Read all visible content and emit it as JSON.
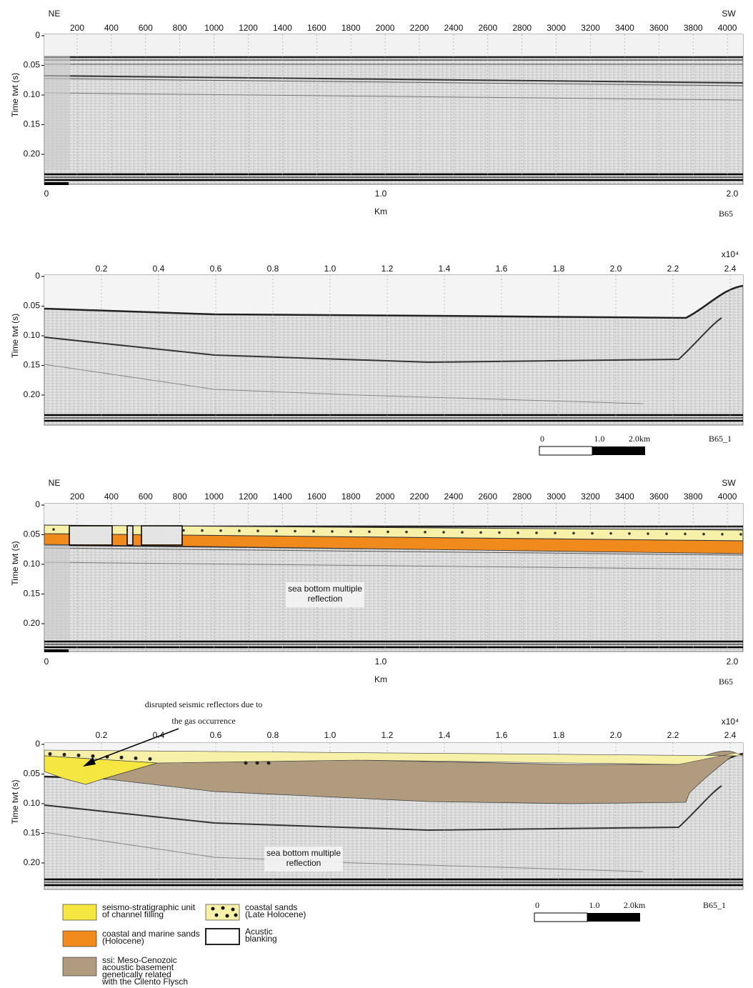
{
  "panels": [
    {
      "left_label": "NE",
      "right_label": "SW",
      "top_ticks": [
        "200",
        "400",
        "600",
        "800",
        "1000",
        "1200",
        "1400",
        "1600",
        "1800",
        "2000",
        "2200",
        "2400",
        "2600",
        "2800",
        "3000",
        "3200",
        "3400",
        "3600",
        "3800",
        "4000"
      ],
      "y_label": "Time twt (s)",
      "y_ticks": [
        "0",
        "0.05",
        "0.10",
        "0.15",
        "0.20"
      ],
      "bottom_ticks": [
        "0",
        "1.0",
        "2.0"
      ],
      "bottom_label": "Km",
      "profile": "B65"
    },
    {
      "multiplier": "x10⁴",
      "top_ticks": [
        "0.2",
        "0.4",
        "0.6",
        "0.8",
        "1.0",
        "1.2",
        "1.4",
        "1.6",
        "1.8",
        "2.0",
        "2.2",
        "2.4"
      ],
      "y_label": "Time twt (s)",
      "y_ticks": [
        "0",
        "0.05",
        "0.10",
        "0.15",
        "0.20"
      ],
      "scale_ticks": [
        "0",
        "1.0",
        "2.0km"
      ],
      "profile": "B65_1"
    },
    {
      "left_label": "NE",
      "right_label": "SW",
      "top_ticks": [
        "200",
        "400",
        "600",
        "800",
        "1000",
        "1200",
        "1400",
        "1600",
        "1800",
        "2000",
        "2200",
        "2400",
        "2600",
        "2800",
        "3000",
        "3200",
        "3400",
        "3600",
        "3800",
        "4000"
      ],
      "y_label": "Time twt (s)",
      "y_ticks": [
        "0",
        "0.05",
        "0.10",
        "0.15",
        "0.20"
      ],
      "annotation": [
        "sea bottom multiple",
        "reflection"
      ],
      "bottom_ticks": [
        "0",
        "1.0",
        "2.0"
      ],
      "bottom_label": "Km",
      "profile": "B65"
    },
    {
      "callout": [
        "disrupted seismic reflectors due to",
        "the gas occurrence"
      ],
      "multiplier": "x10⁴",
      "top_ticks": [
        "0.2",
        "0.4",
        "0.6",
        "0.8",
        "1.0",
        "1.2",
        "1.4",
        "1.6",
        "1.8",
        "2.0",
        "2.2",
        "2.4"
      ],
      "y_label": "Time twt (s)",
      "y_ticks": [
        "0",
        "0.05",
        "0.10",
        "0.15",
        "0.20"
      ],
      "annotation": [
        "sea bottom multiple",
        "reflection"
      ],
      "scale_ticks": [
        "0",
        "1.0",
        "2.0km"
      ],
      "profile": "B65_1"
    }
  ],
  "legend": [
    {
      "label": [
        "seismo-stratigraphic unit",
        "of channel filling"
      ]
    },
    {
      "label": [
        "coastal and marine sands",
        "(Holocene)"
      ]
    },
    {
      "label": [
        "ssi: Meso-Cenozoic",
        "acoustic basement",
        "genetically related",
        "with the Cilento Flysch"
      ]
    },
    {
      "label": [
        "coastal sands",
        "(Late Holocene)"
      ]
    },
    {
      "label": [
        "Acustic",
        "blanking"
      ]
    }
  ]
}
